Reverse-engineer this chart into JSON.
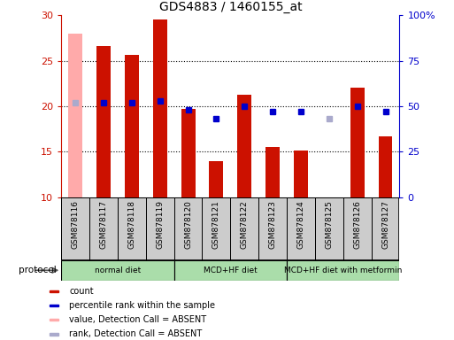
{
  "title": "GDS4883 / 1460155_at",
  "samples": [
    "GSM878116",
    "GSM878117",
    "GSM878118",
    "GSM878119",
    "GSM878120",
    "GSM878121",
    "GSM878122",
    "GSM878123",
    "GSM878124",
    "GSM878125",
    "GSM878126",
    "GSM878127"
  ],
  "count_values": [
    28.0,
    26.6,
    25.6,
    29.5,
    19.7,
    14.0,
    21.3,
    15.5,
    15.1,
    null,
    22.0,
    16.7
  ],
  "count_absent": [
    true,
    false,
    false,
    false,
    false,
    false,
    false,
    false,
    false,
    true,
    false,
    false
  ],
  "percentile_values_pct": [
    52,
    52,
    52,
    53,
    48,
    43,
    50,
    47,
    47,
    43,
    50,
    47
  ],
  "percentile_absent": [
    true,
    false,
    false,
    false,
    false,
    false,
    false,
    false,
    false,
    true,
    false,
    false
  ],
  "ylim_left": [
    10,
    30
  ],
  "ylim_right": [
    0,
    100
  ],
  "yticks_left": [
    10,
    15,
    20,
    25,
    30
  ],
  "ytick_labels_left": [
    "10",
    "15",
    "20",
    "25",
    "30"
  ],
  "yticks_right": [
    0,
    25,
    50,
    75,
    100
  ],
  "ytick_labels_right": [
    "0",
    "25",
    "50",
    "75",
    "100%"
  ],
  "bar_color_present": "#cc1100",
  "bar_color_absent": "#ffaaaa",
  "dot_color_present": "#0000cc",
  "dot_color_absent": "#aaaacc",
  "left_axis_color": "#cc1100",
  "right_axis_color": "#0000cc",
  "bg_color": "#ffffff",
  "label_bg_color": "#cccccc",
  "protocol_color": "#aaddaa",
  "protocol_groups": [
    {
      "label": "normal diet",
      "start": 0,
      "end": 4
    },
    {
      "label": "MCD+HF diet",
      "start": 4,
      "end": 8
    },
    {
      "label": "MCD+HF diet with metformin",
      "start": 8,
      "end": 12
    }
  ],
  "legend_items": [
    {
      "label": "count",
      "color": "#cc1100"
    },
    {
      "label": "percentile rank within the sample",
      "color": "#0000cc"
    },
    {
      "label": "value, Detection Call = ABSENT",
      "color": "#ffaaaa"
    },
    {
      "label": "rank, Detection Call = ABSENT",
      "color": "#aaaacc"
    }
  ]
}
